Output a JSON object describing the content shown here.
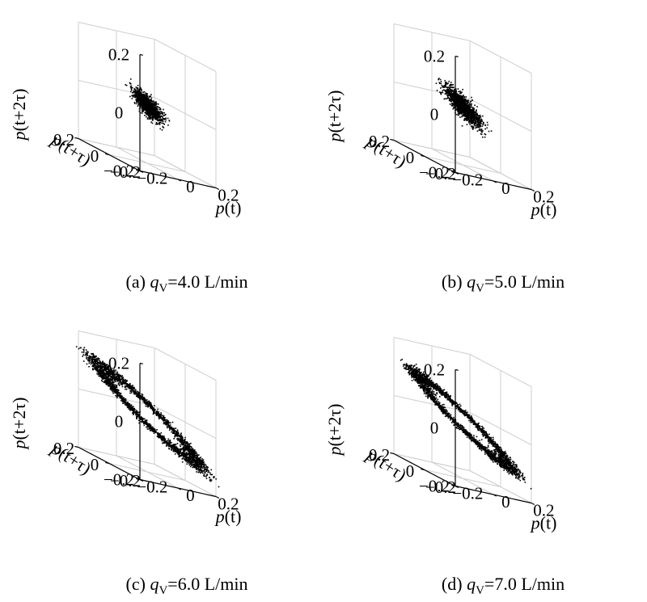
{
  "chart_data": [
    {
      "type": "scatter",
      "panel": "(a)",
      "caption_prefix": "(a) ",
      "caption_var": "q",
      "caption_sub": "V",
      "caption_rest": "=4.0 L/min",
      "xlabel": "p(t)",
      "ylabel": "p(t+τ)",
      "zlabel": "p(t+2τ)",
      "xlim": [
        -0.2,
        0.2
      ],
      "ylim": [
        -0.2,
        0.2
      ],
      "zlim": [
        -0.2,
        0.2
      ],
      "xticks": [
        "−0.2",
        "0",
        "0.2"
      ],
      "yticks": [
        "−0.2",
        "0",
        "0.2"
      ],
      "zticks": [
        "−0.2",
        "0",
        "0.2"
      ],
      "grid": true,
      "attractor": {
        "shape": "ellipsoid-cluster",
        "semi_major": 0.06,
        "semi_minor": 0.035,
        "ring": false
      },
      "color": "#000000"
    },
    {
      "type": "scatter",
      "panel": "(b)",
      "caption_prefix": "(b) ",
      "caption_var": "q",
      "caption_sub": "V",
      "caption_rest": "=5.0 L/min",
      "xlabel": "p(t)",
      "ylabel": "p(t+τ)",
      "zlabel": "p(t+2τ)",
      "xlim": [
        -0.2,
        0.2
      ],
      "ylim": [
        -0.2,
        0.2
      ],
      "zlim": [
        -0.2,
        0.2
      ],
      "xticks": [
        "−0.2",
        "0",
        "0.2"
      ],
      "yticks": [
        "−0.2",
        "0",
        "0.2"
      ],
      "zticks": [
        "−0.2",
        "0",
        "0.2"
      ],
      "grid": true,
      "attractor": {
        "shape": "ellipsoid-cluster",
        "semi_major": 0.08,
        "semi_minor": 0.04,
        "ring": false
      },
      "color": "#000000"
    },
    {
      "type": "scatter",
      "panel": "(c)",
      "caption_prefix": "(c) ",
      "caption_var": "q",
      "caption_sub": "V",
      "caption_rest": "=6.0 L/min",
      "xlabel": "p(t)",
      "ylabel": "p(t+τ)",
      "zlabel": "p(t+2τ)",
      "xlim": [
        -0.2,
        0.2
      ],
      "ylim": [
        -0.2,
        0.2
      ],
      "zlim": [
        -0.2,
        0.2
      ],
      "xticks": [
        "−0.2",
        "0",
        "0.2"
      ],
      "yticks": [
        "−0.2",
        "0",
        "0.2"
      ],
      "zticks": [
        "−0.2",
        "0",
        "0.2"
      ],
      "grid": true,
      "attractor": {
        "shape": "elliptical-ring",
        "semi_major": 0.2,
        "semi_minor": 0.04,
        "ring": true
      },
      "color": "#000000"
    },
    {
      "type": "scatter",
      "panel": "(d)",
      "caption_prefix": "(d) ",
      "caption_var": "q",
      "caption_sub": "V",
      "caption_rest": "=7.0 L/min",
      "xlabel": "p(t)",
      "ylabel": "p(t+τ)",
      "zlabel": "p(t+2τ)",
      "xlim": [
        -0.2,
        0.2
      ],
      "ylim": [
        -0.2,
        0.2
      ],
      "zlim": [
        -0.2,
        0.2
      ],
      "xticks": [
        "−0.2",
        "0",
        "0.2"
      ],
      "yticks": [
        "−0.2",
        "0",
        "0.2"
      ],
      "zticks": [
        "−0.2",
        "0",
        "0.2"
      ],
      "grid": true,
      "attractor": {
        "shape": "elliptical-ring",
        "semi_major": 0.19,
        "semi_minor": 0.035,
        "ring": true
      },
      "color": "#000000"
    }
  ]
}
